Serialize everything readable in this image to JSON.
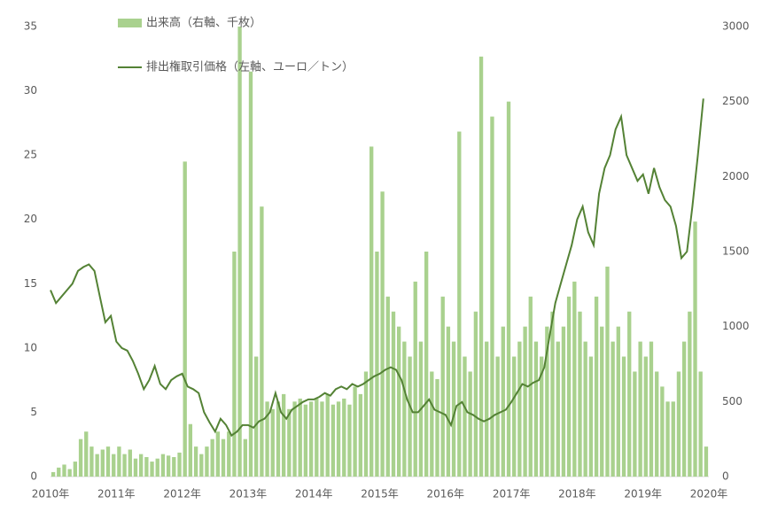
{
  "chart_data": {
    "type": "bar-line",
    "x": [
      2010,
      2010.083,
      2010.167,
      2010.25,
      2010.333,
      2010.417,
      2010.5,
      2010.583,
      2010.667,
      2010.75,
      2010.833,
      2010.917,
      2011,
      2011.083,
      2011.167,
      2011.25,
      2011.333,
      2011.417,
      2011.5,
      2011.583,
      2011.667,
      2011.75,
      2011.833,
      2011.917,
      2012,
      2012.083,
      2012.167,
      2012.25,
      2012.333,
      2012.417,
      2012.5,
      2012.583,
      2012.667,
      2012.75,
      2012.833,
      2012.917,
      2013,
      2013.083,
      2013.167,
      2013.25,
      2013.333,
      2013.417,
      2013.5,
      2013.583,
      2013.667,
      2013.75,
      2013.833,
      2013.917,
      2014,
      2014.083,
      2014.167,
      2014.25,
      2014.333,
      2014.417,
      2014.5,
      2014.583,
      2014.667,
      2014.75,
      2014.833,
      2014.917,
      2015,
      2015.083,
      2015.167,
      2015.25,
      2015.333,
      2015.417,
      2015.5,
      2015.583,
      2015.667,
      2015.75,
      2015.833,
      2015.917,
      2016,
      2016.083,
      2016.167,
      2016.25,
      2016.333,
      2016.417,
      2016.5,
      2016.583,
      2016.667,
      2016.75,
      2016.833,
      2016.917,
      2017,
      2017.083,
      2017.167,
      2017.25,
      2017.333,
      2017.417,
      2017.5,
      2017.583,
      2017.667,
      2017.75,
      2017.833,
      2017.917,
      2018,
      2018.083,
      2018.167,
      2018.25,
      2018.333,
      2018.417,
      2018.5,
      2018.583,
      2018.667,
      2018.75,
      2018.833,
      2018.917,
      2019,
      2019.083,
      2019.167,
      2019.25,
      2019.333,
      2019.417,
      2019.5,
      2019.583,
      2019.667,
      2019.75,
      2019.833,
      2019.917
    ],
    "series": [
      {
        "name": "出来高（右軸、千枚）",
        "color": "#a9d18e",
        "axis": "y2",
        "values": [
          30,
          60,
          80,
          50,
          100,
          250,
          300,
          200,
          150,
          180,
          200,
          150,
          200,
          150,
          180,
          120,
          150,
          130,
          100,
          120,
          150,
          140,
          130,
          160,
          2100,
          350,
          200,
          150,
          200,
          250,
          300,
          250,
          300,
          1500,
          3000,
          250,
          2700,
          800,
          1800,
          500,
          450,
          500,
          550,
          450,
          500,
          520,
          480,
          500,
          520,
          500,
          550,
          480,
          500,
          520,
          480,
          600,
          550,
          700,
          2200,
          1500,
          1900,
          1200,
          1100,
          1000,
          900,
          800,
          1300,
          900,
          1500,
          700,
          650,
          1200,
          1000,
          900,
          2300,
          800,
          700,
          1100,
          2800,
          900,
          2400,
          800,
          1000,
          2500,
          800,
          900,
          1000,
          1200,
          900,
          800,
          1000,
          1100,
          900,
          1000,
          1200,
          1300,
          1100,
          900,
          800,
          1200,
          1000,
          1400,
          900,
          1000,
          800,
          1100,
          700,
          900,
          800,
          900,
          700,
          600,
          500,
          500,
          700,
          900,
          1100,
          1700,
          700,
          200
        ]
      },
      {
        "name": "排出権取引価格（左軸、ユーロ／トン）",
        "color": "#548235",
        "values": [
          14.5,
          13.5,
          14,
          14.5,
          15,
          16,
          16.3,
          16.5,
          16,
          14,
          12,
          12.5,
          10.5,
          10,
          9.8,
          9,
          8,
          6.8,
          7.5,
          8.6,
          7.2,
          6.8,
          7.5,
          7.8,
          8,
          7,
          6.8,
          6.5,
          5,
          4.2,
          3.5,
          4.5,
          4,
          3.2,
          3.5,
          4,
          4,
          3.8,
          4.3,
          4.5,
          5,
          6.5,
          5,
          4.5,
          5.2,
          5.5,
          5.8,
          6,
          6,
          6.2,
          6.5,
          6.3,
          6.8,
          7,
          6.8,
          7.2,
          7,
          7.2,
          7.5,
          7.8,
          8,
          8.3,
          8.5,
          8.3,
          7.5,
          6,
          5,
          5,
          5.5,
          6,
          5.2,
          5,
          4.8,
          4,
          5.5,
          5.8,
          5,
          4.8,
          4.5,
          4.3,
          4.5,
          4.8,
          5,
          5.2,
          5.8,
          6.5,
          7.2,
          7,
          7.3,
          7.5,
          8.5,
          11,
          13.5,
          15,
          16.5,
          18,
          20,
          21,
          19,
          18,
          22,
          24,
          25,
          27,
          28,
          25,
          24,
          23,
          23.5,
          22,
          24,
          22.5,
          21.5,
          21,
          19.5,
          17,
          17.5,
          21,
          25,
          29.4
        ]
      }
    ],
    "xlim": [
      2010,
      2020
    ],
    "xticks": [
      {
        "value": 2010,
        "label": "2010年"
      },
      {
        "value": 2011,
        "label": "2011年"
      },
      {
        "value": 2012,
        "label": "2012年"
      },
      {
        "value": 2013,
        "label": "2013年"
      },
      {
        "value": 2014,
        "label": "2014年"
      },
      {
        "value": 2015,
        "label": "2015年"
      },
      {
        "value": 2016,
        "label": "2016年"
      },
      {
        "value": 2017,
        "label": "2017年"
      },
      {
        "value": 2018,
        "label": "2018年"
      },
      {
        "value": 2019,
        "label": "2019年"
      },
      {
        "value": 2020,
        "label": "2020年"
      }
    ],
    "ylim": [
      0,
      35
    ],
    "yticks": [
      0,
      5,
      10,
      15,
      20,
      25,
      30,
      35
    ],
    "y2lim": [
      0,
      3000
    ],
    "y2ticks": [
      0,
      500,
      1000,
      1500,
      2000,
      2500,
      3000
    ]
  }
}
